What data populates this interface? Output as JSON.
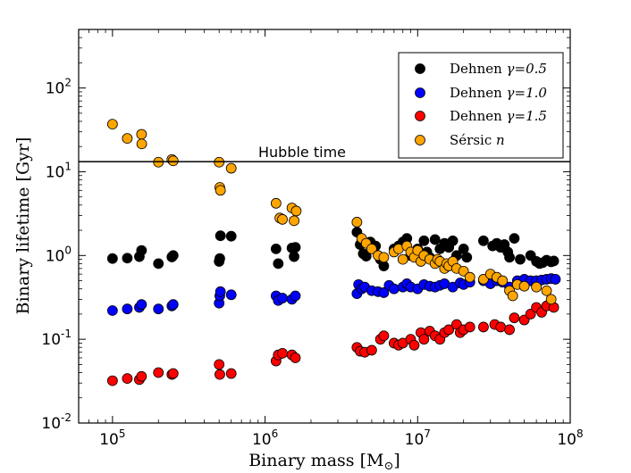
{
  "chart_data": {
    "type": "scatter",
    "xscale": "log",
    "yscale": "log",
    "xlim": [
      60000,
      100000000
    ],
    "ylim": [
      0.01,
      500
    ],
    "xlabel": "Binary mass [M",
    "xlabel_sub": "⊙",
    "xlabel_end": "]",
    "ylabel": "Binary lifetime [Gyr]",
    "x_ticks": [
      {
        "value": 100000,
        "base": "10",
        "exp": "5"
      },
      {
        "value": 1000000,
        "base": "10",
        "exp": "6"
      },
      {
        "value": 10000000,
        "base": "10",
        "exp": "7"
      },
      {
        "value": 100000000,
        "base": "10",
        "exp": "8"
      }
    ],
    "y_ticks": [
      {
        "value": 0.01,
        "base": "10",
        "exp": "-2"
      },
      {
        "value": 0.1,
        "base": "10",
        "exp": "-1"
      },
      {
        "value": 1,
        "base": "10",
        "exp": "0"
      },
      {
        "value": 10,
        "base": "10",
        "exp": "1"
      },
      {
        "value": 100,
        "base": "10",
        "exp": "2"
      }
    ],
    "hline": {
      "y": 13.2,
      "label": "Hubble time"
    },
    "legend_position": "top-right",
    "series": [
      {
        "name": "Dehnen γ=0.5",
        "legend_pre": "Dehnen ",
        "legend_math": "γ=0.5",
        "color": "#000000",
        "points": [
          [
            100000,
            0.92
          ],
          [
            125000,
            0.93
          ],
          [
            150000,
            0.97
          ],
          [
            155000,
            1.15
          ],
          [
            200000,
            0.8
          ],
          [
            245000,
            0.96
          ],
          [
            250000,
            1.0
          ],
          [
            500000,
            0.85
          ],
          [
            505000,
            0.92
          ],
          [
            510000,
            1.72
          ],
          [
            600000,
            1.7
          ],
          [
            1180000,
            1.2
          ],
          [
            1220000,
            0.8
          ],
          [
            1500000,
            1.23
          ],
          [
            1550000,
            0.97
          ],
          [
            1580000,
            1.25
          ],
          [
            4000000,
            1.9
          ],
          [
            4200000,
            1.35
          ],
          [
            4400000,
            1.05
          ],
          [
            4600000,
            0.98
          ],
          [
            4900000,
            1.45
          ],
          [
            5300000,
            1.3
          ],
          [
            5700000,
            0.9
          ],
          [
            6000000,
            0.75
          ],
          [
            7000000,
            1.2
          ],
          [
            7500000,
            1.3
          ],
          [
            8000000,
            1.45
          ],
          [
            8500000,
            1.6
          ],
          [
            9000000,
            1.0
          ],
          [
            10000000,
            1.2
          ],
          [
            11000000,
            1.5
          ],
          [
            11500000,
            1.1
          ],
          [
            12000000,
            0.95
          ],
          [
            13000000,
            1.55
          ],
          [
            14000000,
            1.2
          ],
          [
            15000000,
            1.4
          ],
          [
            16000000,
            1.25
          ],
          [
            17000000,
            1.5
          ],
          [
            18000000,
            1.0
          ],
          [
            20000000,
            1.2
          ],
          [
            21000000,
            0.95
          ],
          [
            27000000,
            1.5
          ],
          [
            31000000,
            1.3
          ],
          [
            33000000,
            1.4
          ],
          [
            35000000,
            1.25
          ],
          [
            37000000,
            1.35
          ],
          [
            39000000,
            1.1
          ],
          [
            40000000,
            0.95
          ],
          [
            43000000,
            1.6
          ],
          [
            47000000,
            0.9
          ],
          [
            55000000,
            1.0
          ],
          [
            60000000,
            0.85
          ],
          [
            63000000,
            0.8
          ],
          [
            66000000,
            0.82
          ],
          [
            70000000,
            0.88
          ],
          [
            75000000,
            0.84
          ],
          [
            78000000,
            0.86
          ]
        ]
      },
      {
        "name": "Dehnen γ=1.0",
        "legend_pre": "Dehnen ",
        "legend_math": "γ=1.0",
        "color": "#0000ff",
        "points": [
          [
            100000,
            0.22
          ],
          [
            125000,
            0.23
          ],
          [
            150000,
            0.24
          ],
          [
            155000,
            0.26
          ],
          [
            200000,
            0.23
          ],
          [
            245000,
            0.25
          ],
          [
            250000,
            0.26
          ],
          [
            500000,
            0.27
          ],
          [
            505000,
            0.33
          ],
          [
            510000,
            0.37
          ],
          [
            600000,
            0.34
          ],
          [
            1180000,
            0.33
          ],
          [
            1220000,
            0.29
          ],
          [
            1300000,
            0.31
          ],
          [
            1500000,
            0.3
          ],
          [
            1580000,
            0.33
          ],
          [
            4000000,
            0.35
          ],
          [
            4100000,
            0.45
          ],
          [
            4300000,
            0.4
          ],
          [
            4500000,
            0.42
          ],
          [
            5000000,
            0.38
          ],
          [
            5500000,
            0.37
          ],
          [
            6000000,
            0.36
          ],
          [
            6500000,
            0.44
          ],
          [
            7000000,
            0.4
          ],
          [
            8000000,
            0.42
          ],
          [
            8500000,
            0.46
          ],
          [
            9000000,
            0.42
          ],
          [
            10000000,
            0.4
          ],
          [
            11000000,
            0.45
          ],
          [
            12000000,
            0.43
          ],
          [
            13000000,
            0.42
          ],
          [
            14000000,
            0.44
          ],
          [
            15000000,
            0.46
          ],
          [
            17000000,
            0.42
          ],
          [
            19000000,
            0.47
          ],
          [
            20000000,
            0.45
          ],
          [
            22000000,
            0.48
          ],
          [
            27000000,
            0.5
          ],
          [
            30000000,
            0.46
          ],
          [
            33000000,
            0.5
          ],
          [
            36000000,
            0.48
          ],
          [
            40000000,
            0.42
          ],
          [
            45000000,
            0.5
          ],
          [
            50000000,
            0.52
          ],
          [
            55000000,
            0.5
          ],
          [
            60000000,
            0.5
          ],
          [
            65000000,
            0.51
          ],
          [
            70000000,
            0.52
          ],
          [
            75000000,
            0.53
          ],
          [
            80000000,
            0.52
          ]
        ]
      },
      {
        "name": "Dehnen γ=1.5",
        "legend_pre": "Dehnen ",
        "legend_math": "γ=1.5",
        "color": "#ff0000",
        "points": [
          [
            100000,
            0.032
          ],
          [
            125000,
            0.034
          ],
          [
            150000,
            0.033
          ],
          [
            155000,
            0.036
          ],
          [
            200000,
            0.04
          ],
          [
            245000,
            0.038
          ],
          [
            250000,
            0.039
          ],
          [
            500000,
            0.05
          ],
          [
            505000,
            0.038
          ],
          [
            600000,
            0.039
          ],
          [
            1180000,
            0.055
          ],
          [
            1220000,
            0.065
          ],
          [
            1300000,
            0.068
          ],
          [
            1500000,
            0.065
          ],
          [
            1580000,
            0.06
          ],
          [
            4000000,
            0.08
          ],
          [
            4200000,
            0.072
          ],
          [
            4500000,
            0.07
          ],
          [
            5000000,
            0.074
          ],
          [
            5700000,
            0.1
          ],
          [
            6000000,
            0.11
          ],
          [
            7000000,
            0.09
          ],
          [
            7500000,
            0.085
          ],
          [
            8000000,
            0.09
          ],
          [
            9000000,
            0.1
          ],
          [
            9500000,
            0.085
          ],
          [
            10500000,
            0.12
          ],
          [
            11000000,
            0.1
          ],
          [
            12000000,
            0.125
          ],
          [
            13000000,
            0.11
          ],
          [
            14000000,
            0.1
          ],
          [
            15000000,
            0.12
          ],
          [
            16000000,
            0.13
          ],
          [
            18000000,
            0.15
          ],
          [
            19000000,
            0.12
          ],
          [
            20000000,
            0.13
          ],
          [
            22000000,
            0.14
          ],
          [
            27000000,
            0.14
          ],
          [
            32000000,
            0.15
          ],
          [
            35000000,
            0.14
          ],
          [
            40000000,
            0.13
          ],
          [
            43000000,
            0.18
          ],
          [
            50000000,
            0.17
          ],
          [
            55000000,
            0.2
          ],
          [
            60000000,
            0.24
          ],
          [
            65000000,
            0.21
          ],
          [
            70000000,
            0.25
          ],
          [
            78000000,
            0.24
          ]
        ]
      },
      {
        "name": "Sérsic n",
        "legend_pre": "Sérsic ",
        "legend_math": "n",
        "color": "#ffa500",
        "points": [
          [
            100000,
            37
          ],
          [
            125000,
            25
          ],
          [
            155000,
            28
          ],
          [
            155500,
            21.5
          ],
          [
            200000,
            13
          ],
          [
            245000,
            14
          ],
          [
            250000,
            13.5
          ],
          [
            500000,
            13
          ],
          [
            505000,
            6.5
          ],
          [
            510000,
            6
          ],
          [
            600000,
            11
          ],
          [
            1180000,
            4.2
          ],
          [
            1250000,
            2.8
          ],
          [
            1300000,
            2.7
          ],
          [
            1500000,
            3.7
          ],
          [
            1550000,
            2.6
          ],
          [
            1600000,
            3.4
          ],
          [
            4000000,
            2.5
          ],
          [
            4300000,
            1.6
          ],
          [
            4600000,
            1.4
          ],
          [
            5000000,
            1.2
          ],
          [
            5500000,
            1.0
          ],
          [
            6000000,
            0.95
          ],
          [
            7000000,
            1.1
          ],
          [
            7500000,
            1.2
          ],
          [
            8000000,
            0.9
          ],
          [
            8500000,
            1.3
          ],
          [
            9000000,
            1.1
          ],
          [
            9500000,
            0.95
          ],
          [
            10000000,
            1.15
          ],
          [
            10500000,
            0.85
          ],
          [
            11000000,
            1.0
          ],
          [
            12000000,
            0.9
          ],
          [
            13000000,
            0.8
          ],
          [
            13500000,
            0.9
          ],
          [
            14000000,
            0.85
          ],
          [
            15000000,
            0.7
          ],
          [
            15500000,
            0.8
          ],
          [
            16000000,
            0.75
          ],
          [
            17000000,
            0.85
          ],
          [
            18000000,
            0.7
          ],
          [
            20000000,
            0.65
          ],
          [
            22000000,
            0.55
          ],
          [
            27000000,
            0.52
          ],
          [
            30000000,
            0.6
          ],
          [
            33000000,
            0.55
          ],
          [
            36000000,
            0.5
          ],
          [
            40000000,
            0.38
          ],
          [
            42000000,
            0.33
          ],
          [
            45000000,
            0.45
          ],
          [
            50000000,
            0.43
          ],
          [
            60000000,
            0.42
          ],
          [
            70000000,
            0.38
          ],
          [
            75000000,
            0.3
          ]
        ]
      }
    ]
  }
}
